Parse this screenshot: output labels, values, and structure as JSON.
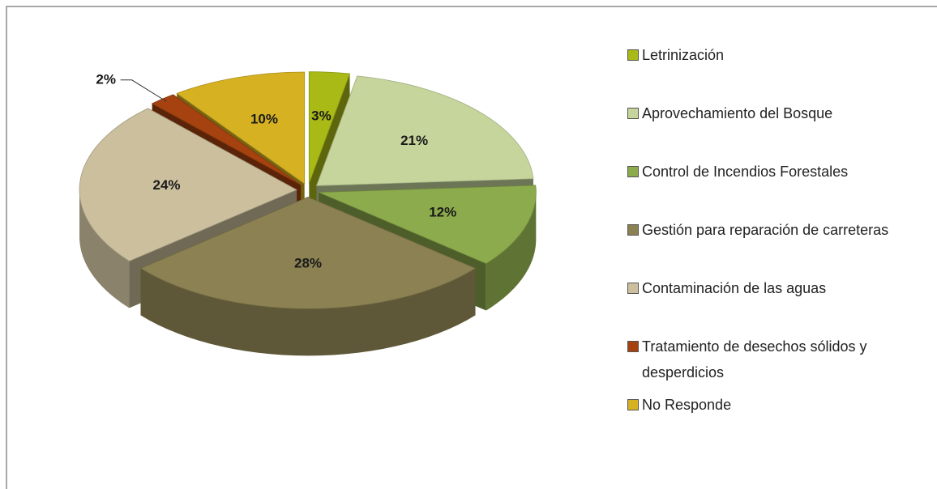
{
  "chart_data": {
    "type": "pie",
    "categories": [
      "Letrinización",
      "Aprovechamiento del Bosque",
      "Control de Incendios Forestales",
      "Gestión para reparación de carreteras",
      "Contaminación de las aguas",
      "Tratamiento de desechos sólidos y desperdicios",
      "No Responde"
    ],
    "values": [
      3,
      21,
      12,
      28,
      24,
      2,
      10
    ],
    "value_labels": [
      "3%",
      "21%",
      "12%",
      "28%",
      "24%",
      "2%",
      "10%"
    ],
    "colors": [
      "#a9b916",
      "#c5d59c",
      "#8cab4c",
      "#8b8152",
      "#cbbf9d",
      "#a5420f",
      "#d6b222"
    ],
    "legend": "right"
  }
}
